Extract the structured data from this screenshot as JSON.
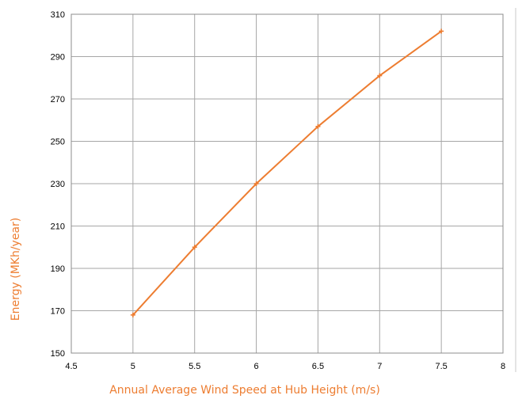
{
  "chart_data": {
    "type": "scatter",
    "title": "",
    "xlabel": "Annual Average Wind Speed at Hub Height (m/s)",
    "ylabel": "Energy (MKh/year)",
    "xlim": [
      4.5,
      8
    ],
    "ylim": [
      150,
      310
    ],
    "xticks": [
      "4.5",
      "5",
      "5.5",
      "6",
      "6.5",
      "7",
      "7.5",
      "8"
    ],
    "yticks": [
      "150",
      "170",
      "190",
      "210",
      "230",
      "250",
      "270",
      "290",
      "310"
    ],
    "grid": true,
    "legend": "none",
    "series": [
      {
        "color": "#ED7D31",
        "marker": "cross",
        "line": true,
        "x": [
          5,
          5.5,
          6,
          6.5,
          7,
          7.5
        ],
        "y": [
          168,
          200,
          230,
          257,
          281,
          302
        ]
      }
    ]
  }
}
